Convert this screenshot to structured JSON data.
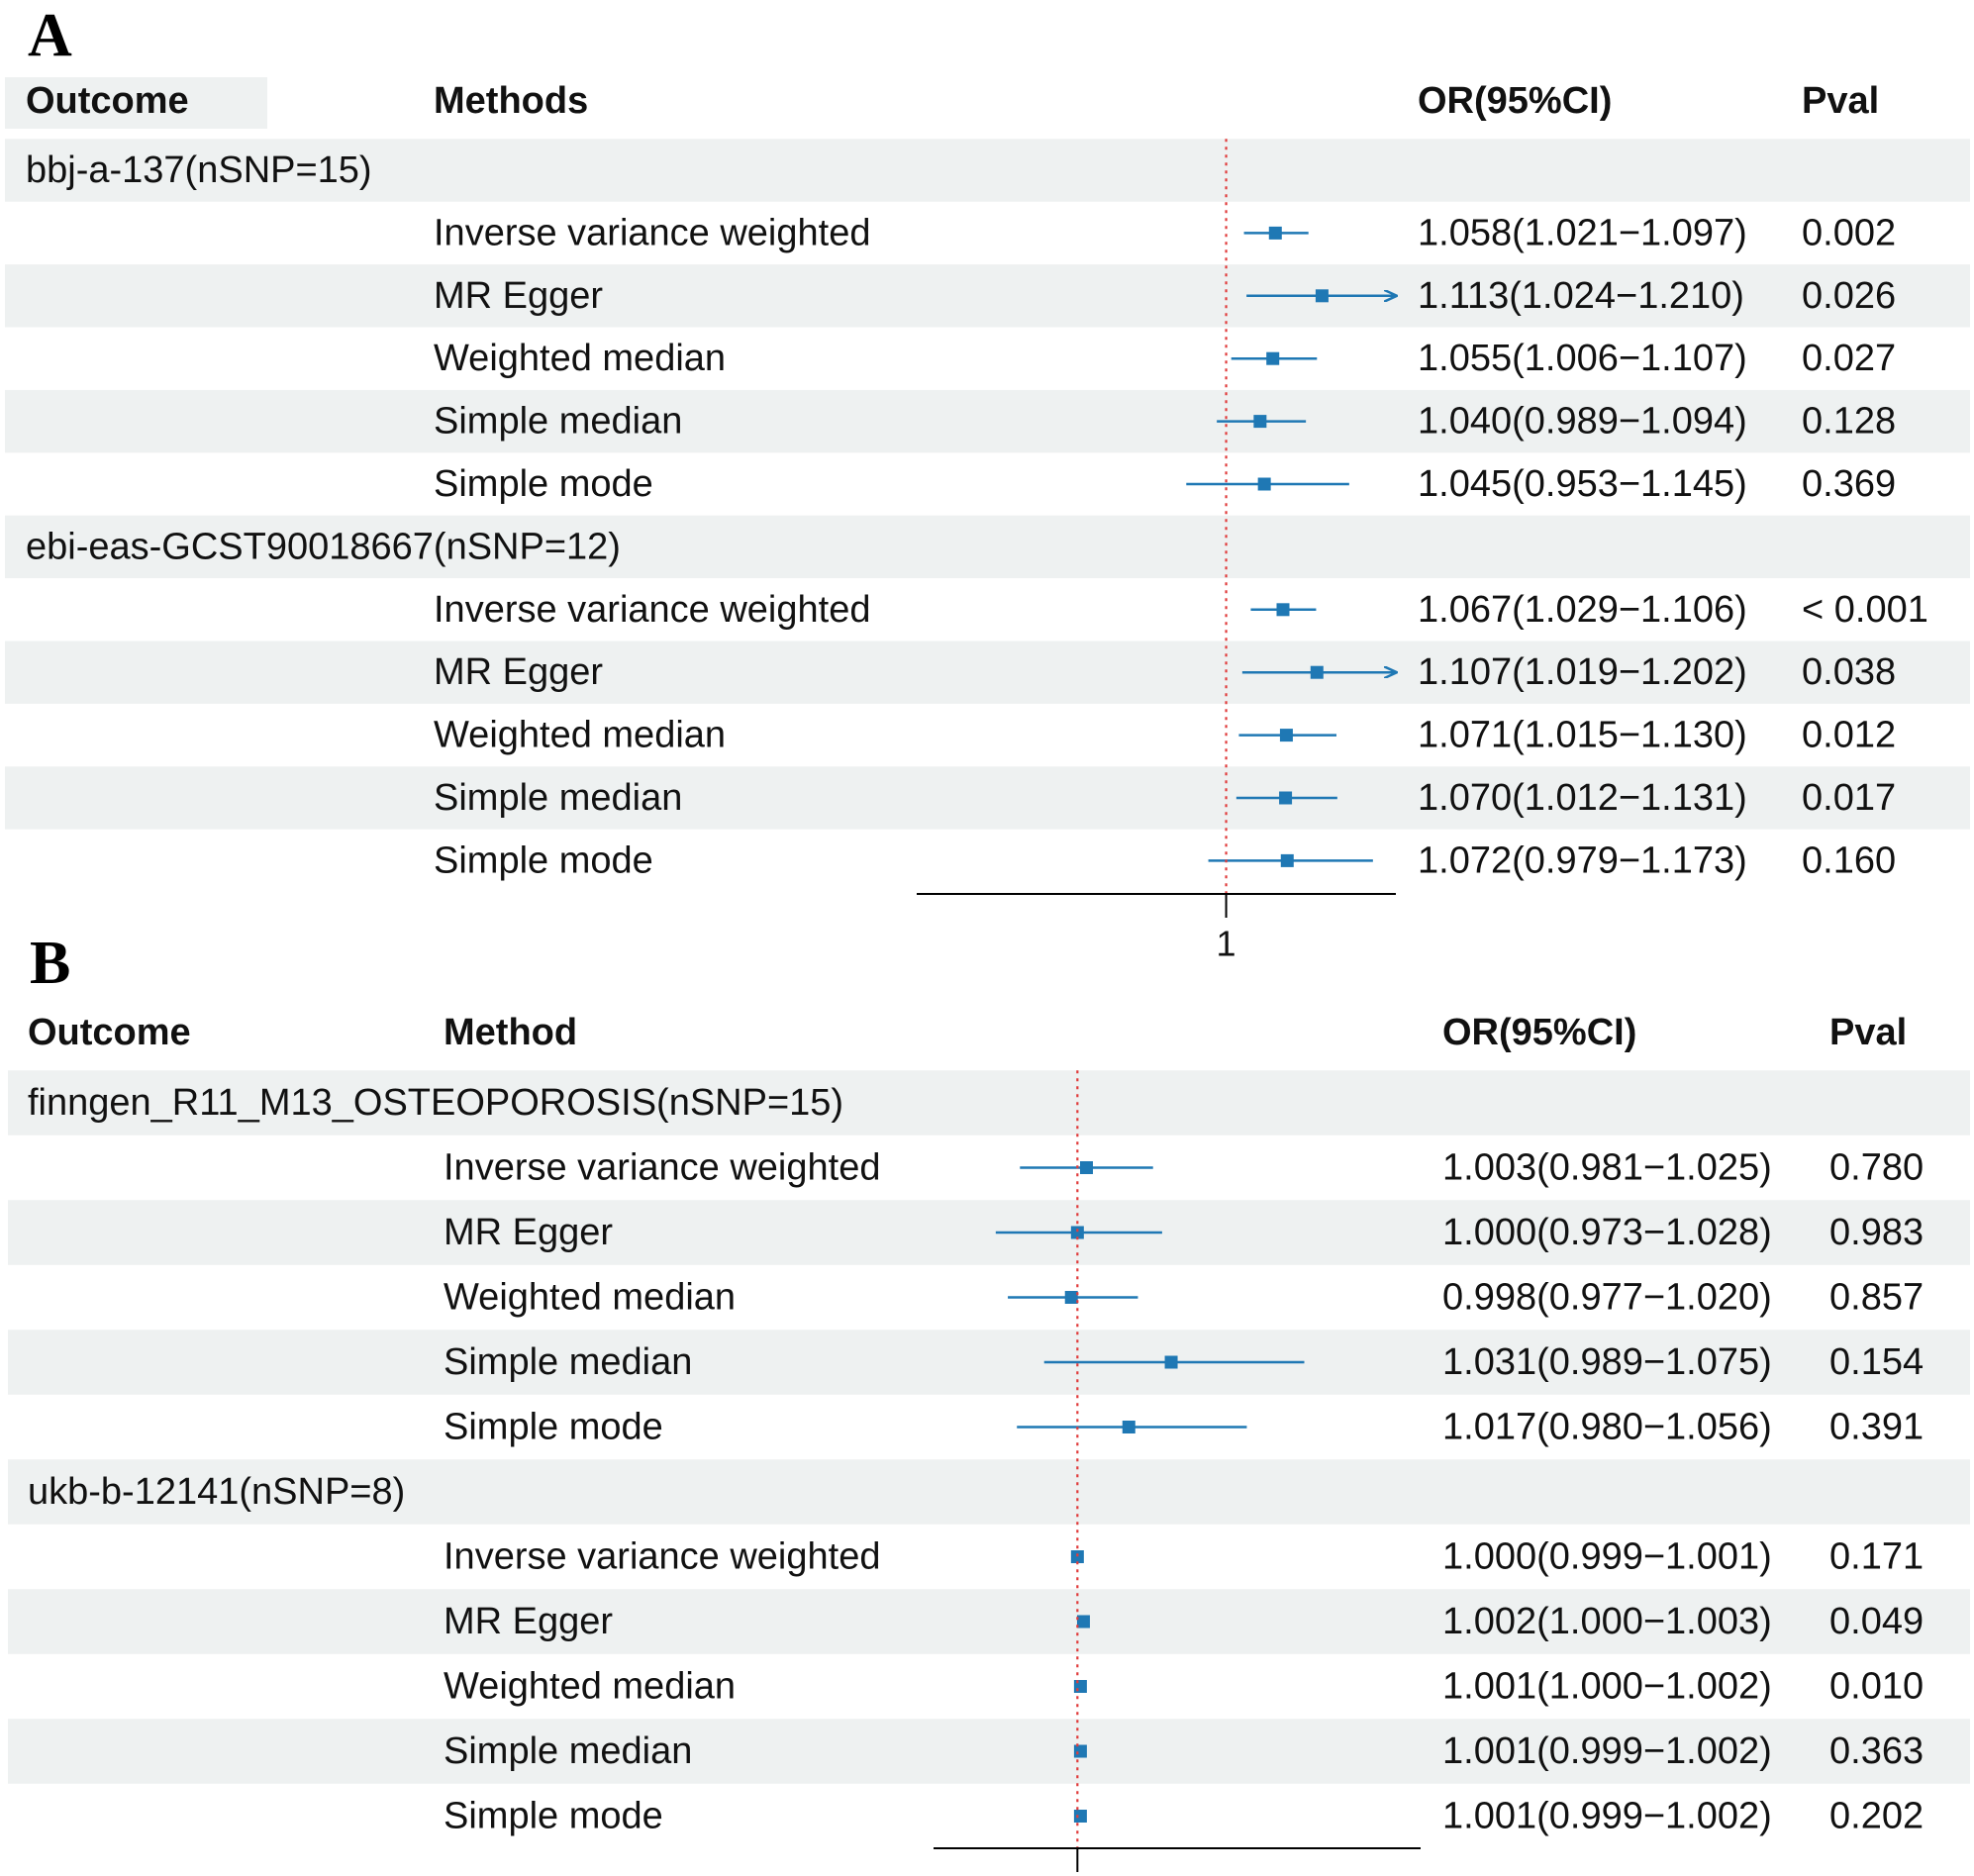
{
  "colors": {
    "band": "#eef1f1",
    "point": "#1f78b4",
    "line": "#1f78b4",
    "refline": "#e03c3c",
    "axis": "#000000"
  },
  "chart_data": [
    {
      "type": "forest",
      "panel": "A",
      "headers": {
        "outcome": "Outcome",
        "method": "Methods",
        "or": "OR(95%CI)",
        "pval": "Pval"
      },
      "xtick_label": "1",
      "reference_value": 1,
      "xlim": [
        0.85,
        1.2
      ],
      "groups": [
        {
          "label": "bbj-a-137(nSNP=15)",
          "rows": [
            {
              "method": "Inverse variance weighted",
              "or": 1.058,
              "lo": 1.021,
              "hi": 1.097,
              "or_text": "1.058(1.021−1.097)",
              "pval": "0.002"
            },
            {
              "method": "MR Egger",
              "or": 1.113,
              "lo": 1.024,
              "hi": 1.21,
              "or_text": "1.113(1.024−1.210)",
              "pval": "0.026"
            },
            {
              "method": "Weighted median",
              "or": 1.055,
              "lo": 1.006,
              "hi": 1.107,
              "or_text": "1.055(1.006−1.107)",
              "pval": "0.027"
            },
            {
              "method": "Simple median",
              "or": 1.04,
              "lo": 0.989,
              "hi": 1.094,
              "or_text": "1.040(0.989−1.094)",
              "pval": "0.128"
            },
            {
              "method": "Simple mode",
              "or": 1.045,
              "lo": 0.953,
              "hi": 1.145,
              "or_text": "1.045(0.953−1.145)",
              "pval": "0.369"
            }
          ]
        },
        {
          "label": "ebi-eas-GCST90018667(nSNP=12)",
          "rows": [
            {
              "method": "Inverse variance weighted",
              "or": 1.067,
              "lo": 1.029,
              "hi": 1.106,
              "or_text": "1.067(1.029−1.106)",
              "pval": "< 0.001"
            },
            {
              "method": "MR Egger",
              "or": 1.107,
              "lo": 1.019,
              "hi": 1.202,
              "or_text": "1.107(1.019−1.202)",
              "pval": "0.038"
            },
            {
              "method": "Weighted median",
              "or": 1.071,
              "lo": 1.015,
              "hi": 1.13,
              "or_text": "1.071(1.015−1.130)",
              "pval": "0.012"
            },
            {
              "method": "Simple median",
              "or": 1.07,
              "lo": 1.012,
              "hi": 1.131,
              "or_text": "1.070(1.012−1.131)",
              "pval": "0.017"
            },
            {
              "method": "Simple mode",
              "or": 1.072,
              "lo": 0.979,
              "hi": 1.173,
              "or_text": "1.072(0.979−1.173)",
              "pval": "0.160"
            }
          ]
        }
      ]
    },
    {
      "type": "forest",
      "panel": "B",
      "headers": {
        "outcome": "Outcome",
        "method": "Method",
        "or": "OR(95%CI)",
        "pval": "Pval"
      },
      "xtick_label": "",
      "reference_value": 1,
      "xlim": [
        0.958,
        1.102
      ],
      "groups": [
        {
          "label": "finngen_R11_M13_OSTEOPOROSIS(nSNP=15)",
          "rows": [
            {
              "method": "Inverse variance weighted",
              "or": 1.003,
              "lo": 0.981,
              "hi": 1.025,
              "or_text": "1.003(0.981−1.025)",
              "pval": "0.780"
            },
            {
              "method": "MR Egger",
              "or": 1.0,
              "lo": 0.973,
              "hi": 1.028,
              "or_text": "1.000(0.973−1.028)",
              "pval": "0.983"
            },
            {
              "method": "Weighted median",
              "or": 0.998,
              "lo": 0.977,
              "hi": 1.02,
              "or_text": "0.998(0.977−1.020)",
              "pval": "0.857"
            },
            {
              "method": "Simple median",
              "or": 1.031,
              "lo": 0.989,
              "hi": 1.075,
              "or_text": "1.031(0.989−1.075)",
              "pval": "0.154"
            },
            {
              "method": "Simple mode",
              "or": 1.017,
              "lo": 0.98,
              "hi": 1.056,
              "or_text": "1.017(0.980−1.056)",
              "pval": "0.391"
            }
          ]
        },
        {
          "label": "ukb-b-12141(nSNP=8)",
          "rows": [
            {
              "method": "Inverse variance weighted",
              "or": 1.0,
              "lo": 0.999,
              "hi": 1.001,
              "or_text": "1.000(0.999−1.001)",
              "pval": "0.171"
            },
            {
              "method": "MR Egger",
              "or": 1.002,
              "lo": 1.0,
              "hi": 1.003,
              "or_text": "1.002(1.000−1.003)",
              "pval": "0.049"
            },
            {
              "method": "Weighted median",
              "or": 1.001,
              "lo": 1.0,
              "hi": 1.002,
              "or_text": "1.001(1.000−1.002)",
              "pval": "0.010"
            },
            {
              "method": "Simple median",
              "or": 1.001,
              "lo": 0.999,
              "hi": 1.002,
              "or_text": "1.001(0.999−1.002)",
              "pval": "0.363"
            },
            {
              "method": "Simple mode",
              "or": 1.001,
              "lo": 0.999,
              "hi": 1.002,
              "or_text": "1.001(0.999−1.002)",
              "pval": "0.202"
            }
          ]
        }
      ]
    }
  ]
}
